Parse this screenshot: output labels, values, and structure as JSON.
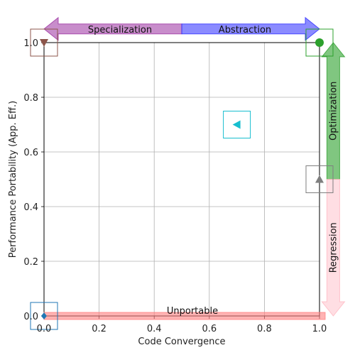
{
  "chart_data": {
    "type": "scatter",
    "title": "",
    "xlabel": "Code Convergence",
    "ylabel": "Performance Portability (App. Eff.)",
    "xlim": [
      0.0,
      1.0
    ],
    "ylim": [
      0.0,
      1.0
    ],
    "xticks": [
      "0.0",
      "0.2",
      "0.4",
      "0.6",
      "0.8",
      "1.0"
    ],
    "yticks": [
      "0.0",
      "0.2",
      "0.4",
      "0.6",
      "0.8",
      "1.0"
    ],
    "grid": true,
    "points": [
      {
        "x": 0.0,
        "y": 0.0,
        "marker": "diamond",
        "color": "#1f77b4"
      },
      {
        "x": 0.0,
        "y": 1.0,
        "marker": "triangle-down",
        "color": "#8c564b"
      },
      {
        "x": 1.0,
        "y": 1.0,
        "marker": "circle",
        "color": "#2ca02c"
      },
      {
        "x": 1.0,
        "y": 0.5,
        "marker": "triangle-up",
        "color": "#7f7f7f"
      },
      {
        "x": 0.7,
        "y": 0.7,
        "marker": "triangle-left",
        "color": "#17becf"
      }
    ],
    "annotations": [
      {
        "label": "Specialization",
        "direction": "left",
        "color": "#9b30a0",
        "from": [
          0.5,
          1.05
        ],
        "to": [
          0.0,
          1.05
        ]
      },
      {
        "label": "Abstraction",
        "direction": "right",
        "color": "#2b2bff",
        "from": [
          0.5,
          1.05
        ],
        "to": [
          1.0,
          1.05
        ]
      },
      {
        "label": "Optimization",
        "direction": "up",
        "color": "#2ca02c",
        "from": [
          1.05,
          0.5
        ],
        "to": [
          1.05,
          1.0
        ]
      },
      {
        "label": "Regression",
        "direction": "down",
        "color": "#ffb6c1",
        "from": [
          1.05,
          0.5
        ],
        "to": [
          1.05,
          0.0
        ]
      },
      {
        "label": "Unportable",
        "direction": "none",
        "color": "#ff8080",
        "from": [
          0.0,
          0.0
        ],
        "to": [
          1.0,
          0.0
        ]
      }
    ]
  }
}
